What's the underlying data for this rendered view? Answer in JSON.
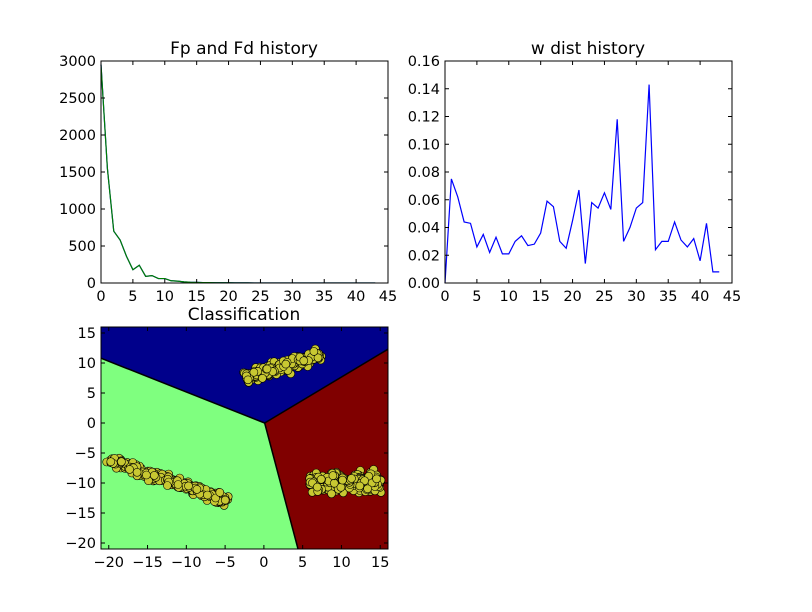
{
  "chart_data": [
    {
      "type": "line",
      "title": "Fp and Fd history",
      "xlabel": "",
      "ylabel": "",
      "xlim": [
        0,
        45
      ],
      "ylim": [
        0,
        3000
      ],
      "x_ticks": [
        "0",
        "5",
        "10",
        "15",
        "20",
        "25",
        "30",
        "35",
        "40",
        "45"
      ],
      "y_ticks": [
        "0",
        "500",
        "1000",
        "1500",
        "2000",
        "2500",
        "3000"
      ],
      "grid": false,
      "series": [
        {
          "color": "#0000ff",
          "x": [
            0,
            1,
            2,
            3,
            4,
            5,
            6,
            7,
            8,
            9,
            10,
            11,
            12,
            13,
            14,
            15,
            16,
            17,
            18,
            19,
            20,
            21,
            22,
            23,
            24,
            25,
            26,
            27,
            28,
            29,
            30,
            31,
            32,
            33,
            34,
            35,
            36,
            37,
            38,
            39,
            40,
            41,
            42,
            43
          ],
          "values": [
            2950,
            1550,
            700,
            580,
            360,
            180,
            240,
            90,
            100,
            60,
            60,
            30,
            25,
            15,
            10,
            8,
            6,
            5,
            4,
            3,
            3,
            2,
            2,
            2,
            1,
            1,
            1,
            1,
            1,
            1,
            1,
            1,
            1,
            1,
            1,
            1,
            1,
            1,
            1,
            1,
            1,
            1,
            1,
            1
          ]
        },
        {
          "color": "#007f00",
          "x": [
            0,
            1,
            2,
            3,
            4,
            5,
            6,
            7,
            8,
            9,
            10,
            11,
            12,
            13,
            14,
            15,
            16,
            17,
            18,
            19,
            20,
            21,
            22,
            23,
            24,
            25,
            26,
            27,
            28,
            29,
            30,
            31,
            32,
            33,
            34,
            35,
            36,
            37,
            38,
            39,
            40,
            41,
            42,
            43
          ],
          "values": [
            2950,
            1550,
            700,
            580,
            360,
            180,
            240,
            90,
            100,
            60,
            60,
            30,
            25,
            15,
            10,
            8,
            6,
            5,
            4,
            3,
            3,
            2,
            2,
            2,
            1,
            1,
            1,
            1,
            1,
            1,
            1,
            1,
            1,
            1,
            1,
            1,
            1,
            1,
            1,
            1,
            1,
            1,
            1,
            1
          ]
        }
      ]
    },
    {
      "type": "line",
      "title": "w dist history",
      "xlabel": "",
      "ylabel": "",
      "xlim": [
        0,
        45
      ],
      "ylim": [
        0,
        0.16
      ],
      "x_ticks": [
        "0",
        "5",
        "10",
        "15",
        "20",
        "25",
        "30",
        "35",
        "40",
        "45"
      ],
      "y_ticks": [
        "0.00",
        "0.02",
        "0.04",
        "0.06",
        "0.08",
        "0.10",
        "0.12",
        "0.14",
        "0.16"
      ],
      "grid": false,
      "series": [
        {
          "color": "#0000ff",
          "x": [
            0,
            1,
            2,
            3,
            4,
            5,
            6,
            7,
            8,
            9,
            10,
            11,
            12,
            13,
            14,
            15,
            16,
            17,
            18,
            19,
            20,
            21,
            22,
            23,
            24,
            25,
            26,
            27,
            28,
            29,
            30,
            31,
            32,
            33,
            34,
            35,
            36,
            37,
            38,
            39,
            40,
            41,
            42,
            43
          ],
          "values": [
            0.0,
            0.075,
            0.062,
            0.044,
            0.043,
            0.026,
            0.035,
            0.022,
            0.033,
            0.021,
            0.021,
            0.03,
            0.034,
            0.027,
            0.028,
            0.036,
            0.059,
            0.055,
            0.03,
            0.025,
            0.045,
            0.067,
            0.014,
            0.058,
            0.054,
            0.065,
            0.053,
            0.118,
            0.03,
            0.04,
            0.054,
            0.058,
            0.143,
            0.024,
            0.03,
            0.03,
            0.044,
            0.031,
            0.026,
            0.032,
            0.016,
            0.043,
            0.008,
            0.008
          ]
        }
      ]
    },
    {
      "type": "scatter",
      "title": "Classification",
      "xlabel": "",
      "ylabel": "",
      "xlim": [
        -21,
        16
      ],
      "ylim": [
        -21,
        16
      ],
      "x_ticks": [
        "−20",
        "−15",
        "−10",
        "−5",
        "0",
        "5",
        "10",
        "15"
      ],
      "y_ticks": [
        "−20",
        "−15",
        "−10",
        "−5",
        "0",
        "5",
        "10",
        "15"
      ],
      "grid": false,
      "regions": [
        {
          "name": "top",
          "color": "#00008b"
        },
        {
          "name": "left",
          "color": "#7fff7f"
        },
        {
          "name": "right",
          "color": "#800000"
        }
      ],
      "boundary": {
        "junction": [
          0.1,
          0
        ],
        "rays": [
          [
            -21,
            10.8
          ],
          [
            16,
            12.3
          ],
          [
            4.4,
            -21
          ]
        ]
      },
      "point_color": "#c8c832",
      "clusters": [
        {
          "center": [
            2.5,
            9.5
          ],
          "direction": [
            5,
            2
          ],
          "half_length": 5.2,
          "spread": 1.3,
          "count": 260
        },
        {
          "center": [
            -12.5,
            -9.5
          ],
          "direction": [
            5,
            -2.3
          ],
          "half_length": 8.5,
          "spread": 1.1,
          "count": 300
        },
        {
          "center": [
            10.5,
            -9.8
          ],
          "direction": [
            1,
            0
          ],
          "half_length": 4.6,
          "spread": 2.0,
          "count": 260
        }
      ]
    }
  ]
}
